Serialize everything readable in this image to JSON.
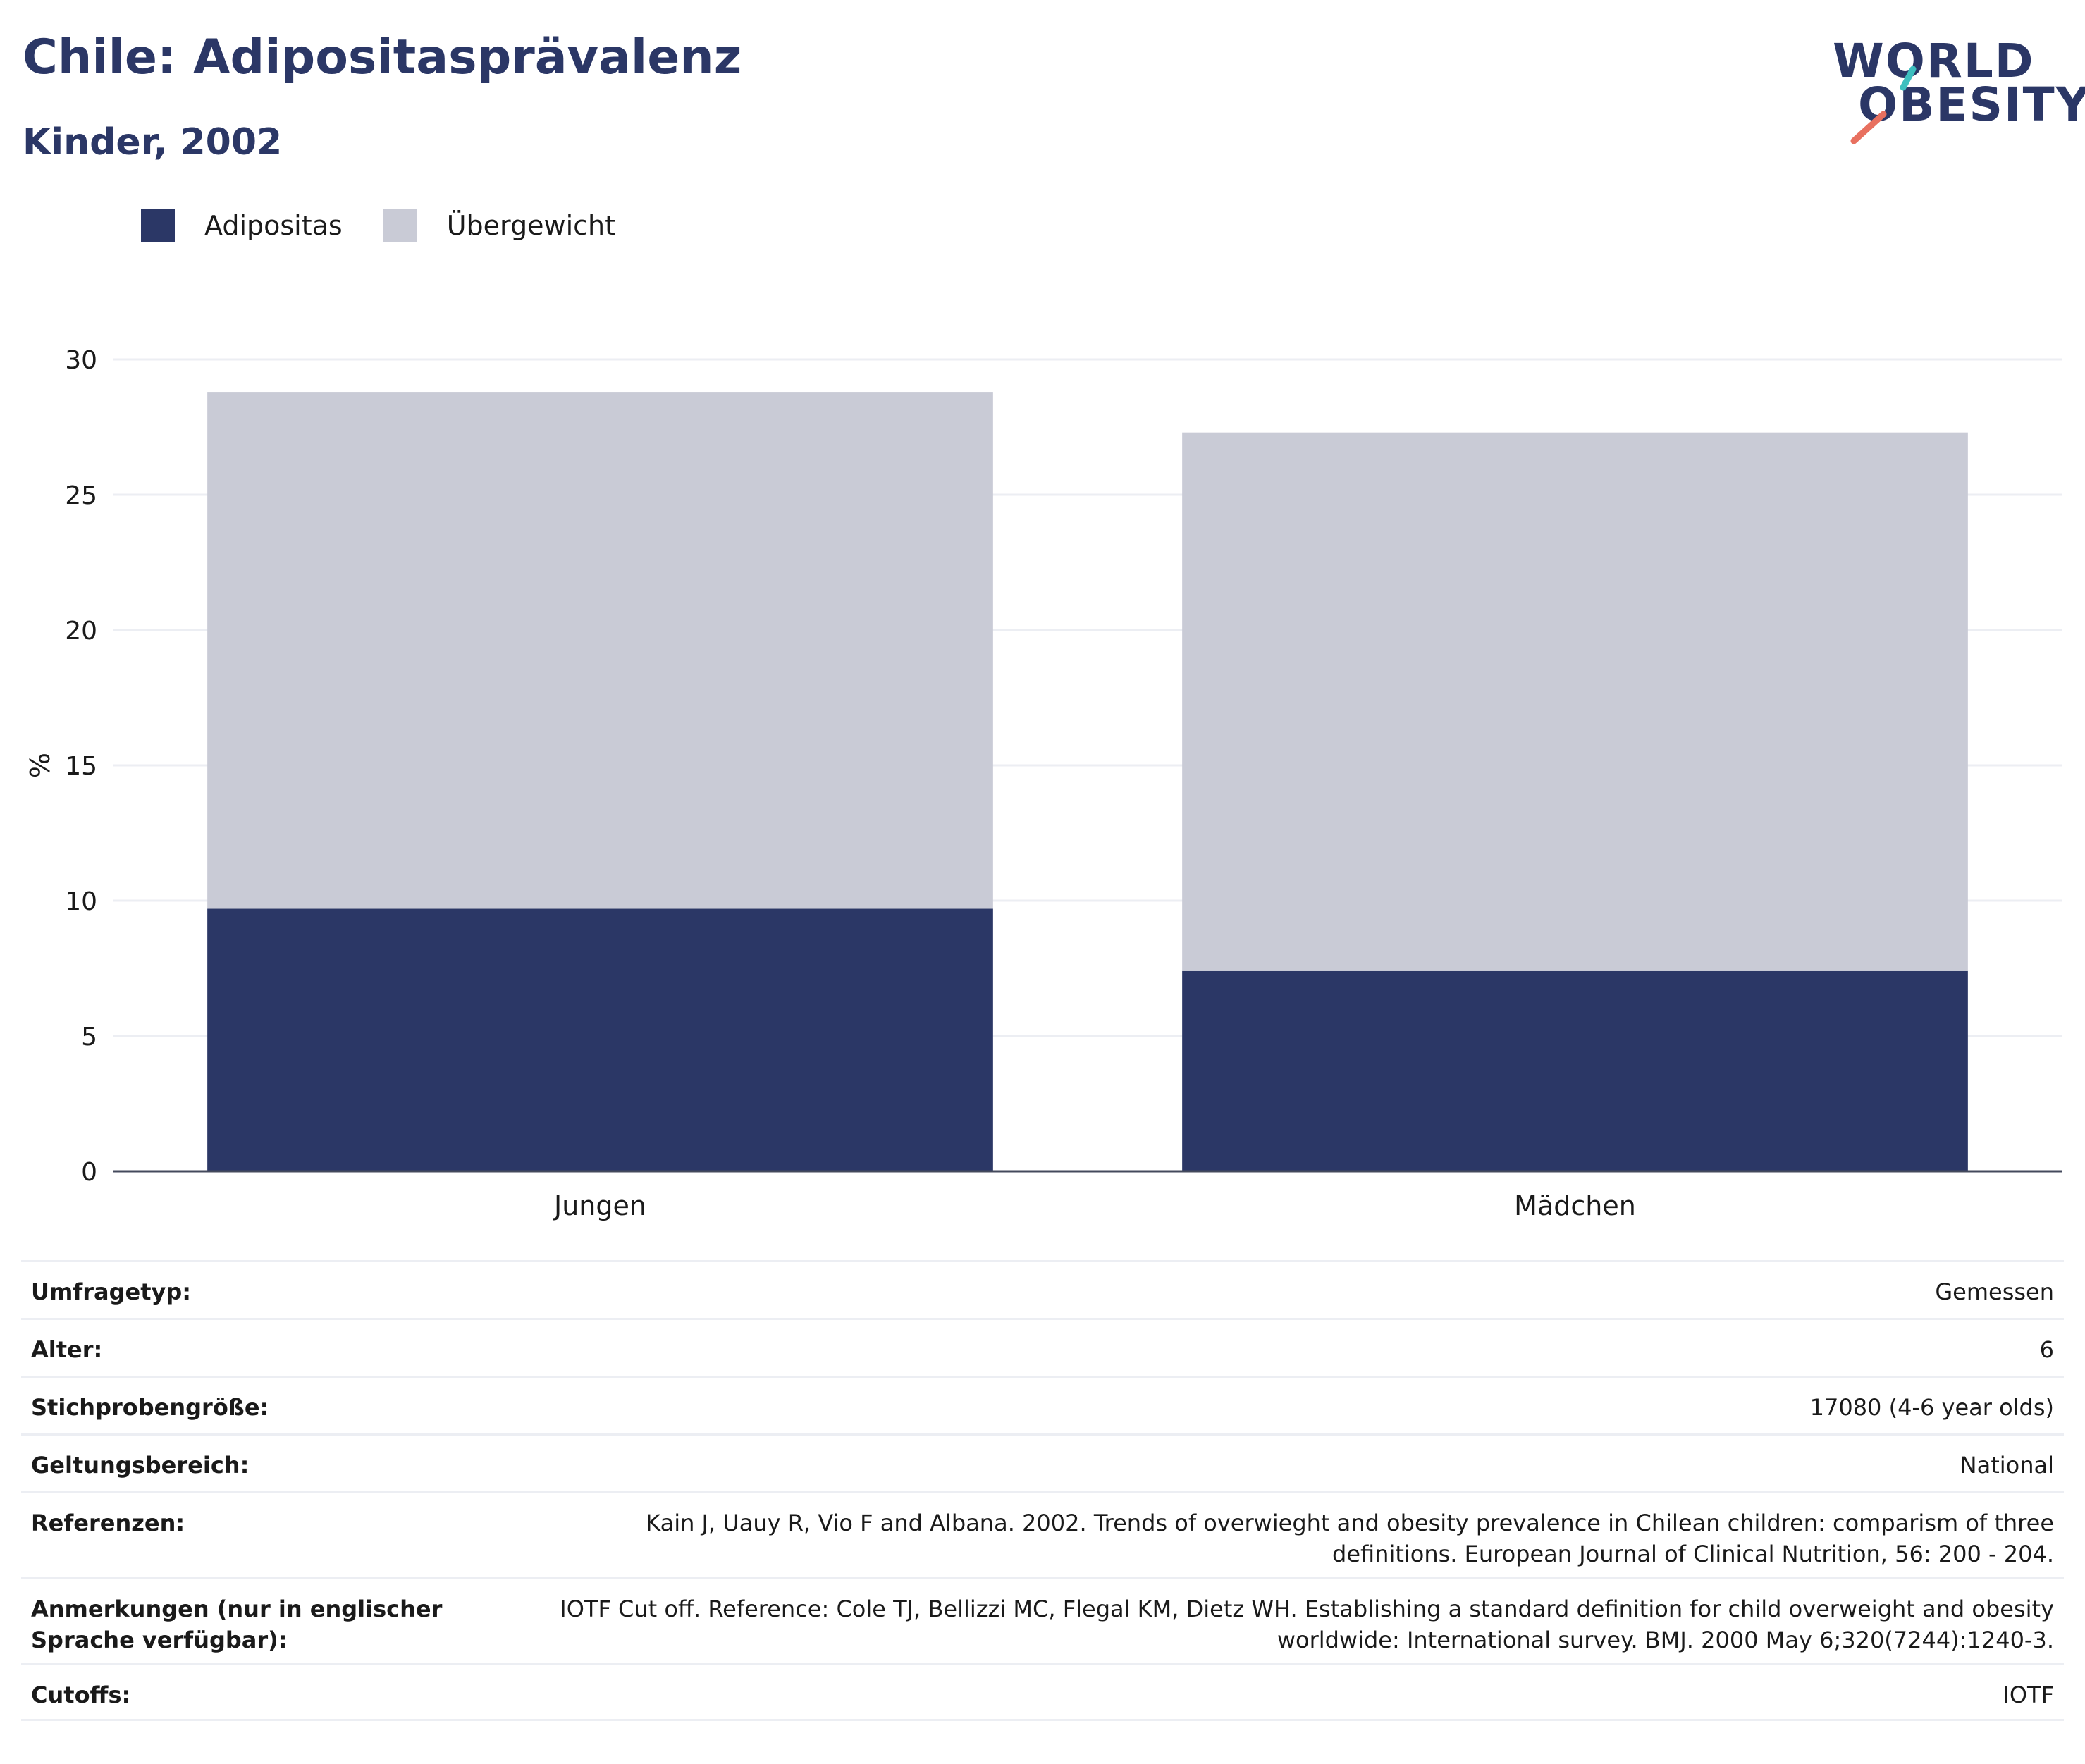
{
  "header": {
    "title": "Chile: Adipositasprävalenz",
    "subtitle": "Kinder, 2002"
  },
  "logo": {
    "line1": "WORLD",
    "line2": "OBESITY",
    "accent_teal": "#3dbfbf",
    "accent_coral": "#e8705f"
  },
  "legend": [
    {
      "label": "Adipositas",
      "color": "#2b3766"
    },
    {
      "label": "Übergewicht",
      "color": "#c9cbd6"
    }
  ],
  "chart_data": {
    "type": "bar",
    "stacked": true,
    "categories": [
      "Jungen",
      "Mädchen"
    ],
    "series": [
      {
        "name": "Adipositas",
        "color": "#2b3766",
        "values": [
          9.7,
          7.4
        ]
      },
      {
        "name": "Übergewicht",
        "color": "#c9cbd6",
        "values": [
          19.1,
          19.9
        ]
      }
    ],
    "ylabel": "%",
    "ylim": [
      0,
      30
    ],
    "yticks": [
      "0",
      "5",
      "10",
      "15",
      "20",
      "25",
      "30"
    ],
    "grid": true,
    "legend_position": "top-left"
  },
  "meta": [
    {
      "label": "Umfragetyp:",
      "value": "Gemessen"
    },
    {
      "label": "Alter:",
      "value": "6"
    },
    {
      "label": "Stichprobengröße:",
      "value": "17080 (4-6 year olds)"
    },
    {
      "label": "Geltungsbereich:",
      "value": "National"
    },
    {
      "label": "Referenzen:",
      "value": "Kain J, Uauy R, Vio F and Albana. 2002. Trends of overwieght and obesity prevalence in Chilean children: comparism of three definitions. European Journal of Clinical Nutrition, 56: 200 - 204."
    },
    {
      "label": "Anmerkungen (nur in englischer Sprache verfügbar):",
      "value": "IOTF Cut off. Reference: Cole TJ, Bellizzi MC, Flegal KM, Dietz WH. Establishing a standard definition for child overweight and obesity worldwide: International survey. BMJ. 2000 May 6;320(7244):1240-3."
    },
    {
      "label": "Cutoffs:",
      "value": "IOTF"
    }
  ]
}
